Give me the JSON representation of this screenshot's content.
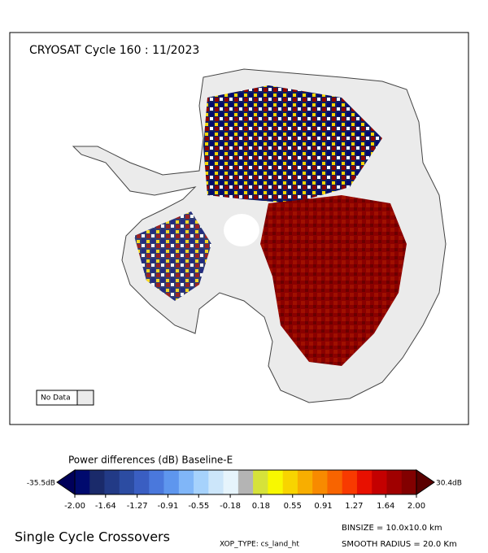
{
  "map": {
    "title": "CRYOSAT Cycle 160 : 11/2023",
    "no_data_label": "No Data"
  },
  "colorbar": {
    "title": "Power differences (dB) Baseline-E",
    "min_label": "-35.5dB",
    "max_label": "30.4dB",
    "lim": [
      -2,
      2
    ],
    "ticks": [
      {
        "value": -2,
        "label": "-2.00"
      },
      {
        "value": -1.64,
        "label": "-1.64"
      },
      {
        "value": -1.27,
        "label": "-1.27"
      },
      {
        "value": -0.91,
        "label": "-0.91"
      },
      {
        "value": -0.55,
        "label": "-0.55"
      },
      {
        "value": -0.18,
        "label": "-0.18"
      },
      0.18,
      0.55,
      0.91,
      1.27,
      1.64,
      {
        "value": 2,
        "label": "2.00"
      }
    ],
    "under_color": "#00005a",
    "over_color": "#5a0000",
    "colors": [
      "#000a6e",
      "#1a2a6a",
      "#223a86",
      "#2c4ca2",
      "#3a5ec2",
      "#4a78dc",
      "#5e96ee",
      "#80b6f8",
      "#a6d2fc",
      "#cce6fa",
      "#e6f4fc",
      "#b4b4b4",
      "#d6e23a",
      "#f8f800",
      "#f8d400",
      "#f8ae00",
      "#f88a00",
      "#f86400",
      "#f83a00",
      "#e81000",
      "#c40000",
      "#a00000",
      "#820000"
    ]
  },
  "footer": {
    "caption": "Single Cycle Crossovers",
    "binsize": "BINSIZE = 10.0x10.0 km",
    "xop_type": "XOP_TYPE: cs_land_ht",
    "smooth_radius": "SMOOTH RADIUS =  20.0 Km"
  }
}
